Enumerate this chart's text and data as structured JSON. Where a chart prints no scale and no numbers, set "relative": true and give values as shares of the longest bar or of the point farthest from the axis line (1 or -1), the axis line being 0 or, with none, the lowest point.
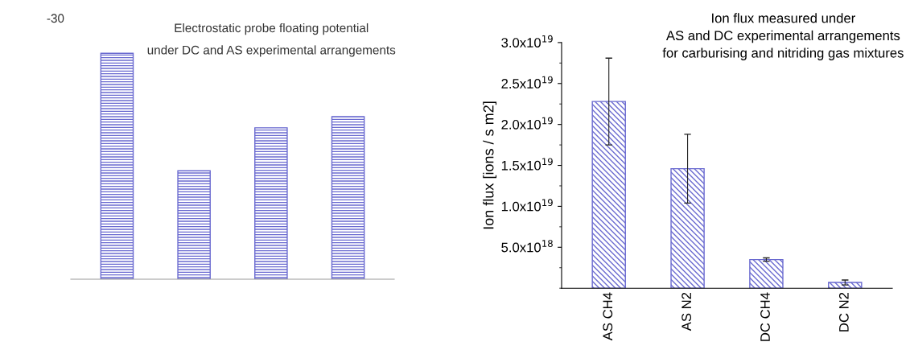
{
  "chart_data": [
    {
      "type": "bar",
      "title": "Electrostatic probe floating potential",
      "subtitle": "under DC and AS experimental arrangements",
      "relative": true,
      "categories": [
        null,
        null,
        null,
        null
      ],
      "values": [
        1,
        0.48,
        0.67,
        0.72
      ],
      "color": "#6a6ad0",
      "annotations": [
        "-30"
      ],
      "grid": false
    },
    {
      "type": "bar",
      "title": "Ion flux measured under\nAS and DC experimental arrangements\nfor carburising and nitriding gas mixtures",
      "ylabel": "Ion flux [ions / s m2]",
      "categories": [
        "AS CH4",
        "AS N2",
        "DC CH4",
        "DC N2"
      ],
      "values": [
        2.28e+19,
        1.46e+19,
        3.5e+18,
        7e+17
      ],
      "errors": [
        5.3e+18,
        4.2e+18,
        2e+17,
        3e+17
      ],
      "color": "#6a6ad0",
      "ylim": [
        0,
        3e+19
      ],
      "yticks": [
        {
          "value": 5e+18,
          "label": "5.0x10$^{18}$"
        },
        {
          "value": 1e+19,
          "label": "1.0x10$^{19}$"
        },
        {
          "value": 1.5e+19,
          "label": "1.5x10$^{19}$"
        },
        {
          "value": 2e+19,
          "label": "2.0x10$^{19}$"
        },
        {
          "value": 2.5e+19,
          "label": "2.5x10$^{19}$"
        },
        {
          "value": 3e+19,
          "label": "3.0x10$^{19}$"
        }
      ],
      "grid": false
    }
  ]
}
